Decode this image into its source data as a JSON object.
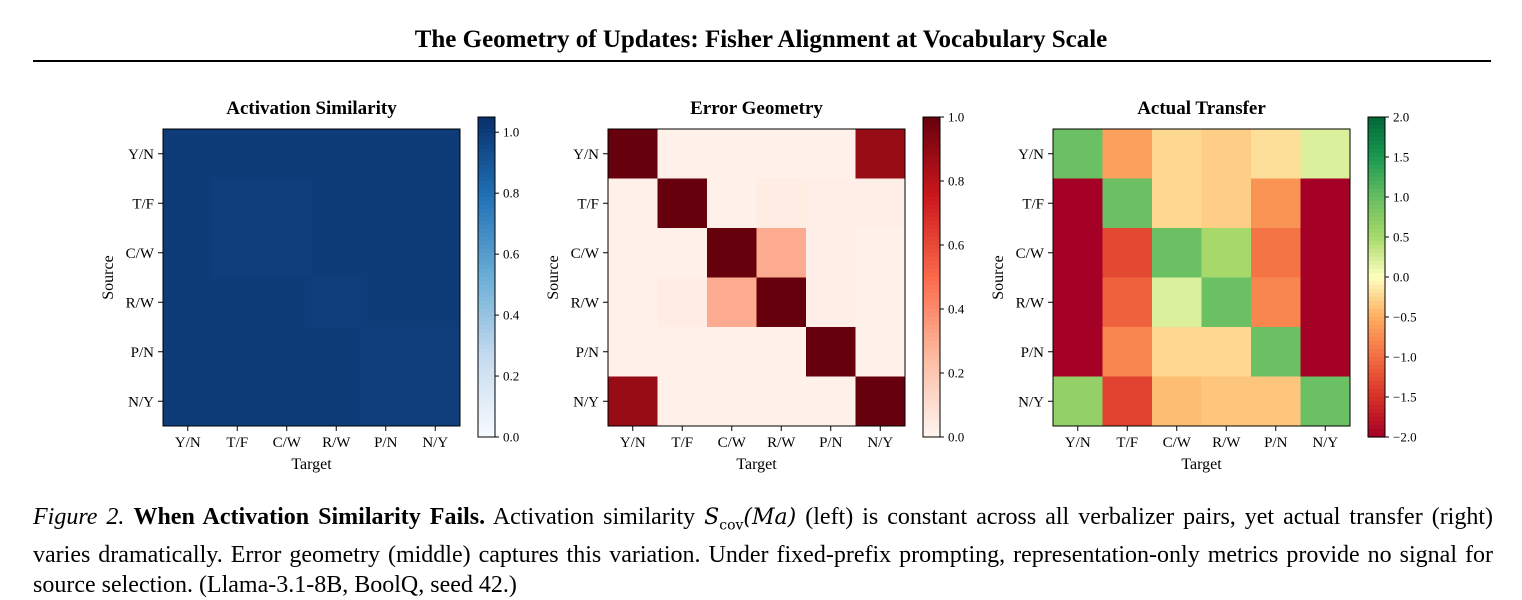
{
  "paper": {
    "running_title": "The Geometry of Updates: Fisher Alignment at Vocabulary Scale"
  },
  "caption": {
    "label": "Figure 2.",
    "heading": "When Activation Similarity Fails.",
    "text_before_math": "Activation similarity",
    "math_symbol": "S",
    "math_subscript": "cov",
    "math_argument": "(Ma)",
    "text_after_math": "(left) is constant across all verbalizer pairs, yet actual transfer (right) varies dramatically. Error geometry (middle) captures this variation. Under fixed-prefix prompting, representation-only metrics provide no signal for source selection. (Llama-3.1-8B, BoolQ, seed 42.)"
  },
  "chart_data": [
    {
      "type": "heatmap",
      "title": "Activation Similarity",
      "xlabel": "Target",
      "ylabel": "Source",
      "x_categories": [
        "Y/N",
        "T/F",
        "C/W",
        "R/W",
        "P/N",
        "N/Y"
      ],
      "y_categories": [
        "Y/N",
        "T/F",
        "C/W",
        "R/W",
        "P/N",
        "N/Y"
      ],
      "colormap": "Blues",
      "vmin": 0.0,
      "vmax": 1.05,
      "colorbar_ticks": [
        "0.0",
        "0.2",
        "0.4",
        "0.6",
        "0.8",
        "1.0"
      ],
      "colorbar_tick_values": [
        0.0,
        0.2,
        0.4,
        0.6,
        0.8,
        1.0
      ],
      "values": [
        [
          1.0,
          1.0,
          1.0,
          1.0,
          1.0,
          1.0
        ],
        [
          1.0,
          0.99,
          0.99,
          1.0,
          1.0,
          1.0
        ],
        [
          1.0,
          0.99,
          0.99,
          1.0,
          1.0,
          1.0
        ],
        [
          1.0,
          1.0,
          1.0,
          0.99,
          1.0,
          1.0
        ],
        [
          1.0,
          1.0,
          1.0,
          1.0,
          0.99,
          0.99
        ],
        [
          1.0,
          1.0,
          1.0,
          1.0,
          0.99,
          0.99
        ]
      ]
    },
    {
      "type": "heatmap",
      "title": "Error Geometry",
      "xlabel": "Target",
      "ylabel": "Source",
      "x_categories": [
        "Y/N",
        "T/F",
        "C/W",
        "R/W",
        "P/N",
        "N/Y"
      ],
      "y_categories": [
        "Y/N",
        "T/F",
        "C/W",
        "R/W",
        "P/N",
        "N/Y"
      ],
      "colormap": "Reds",
      "vmin": 0.0,
      "vmax": 1.0,
      "colorbar_ticks": [
        "0.0",
        "0.2",
        "0.4",
        "0.6",
        "0.8",
        "1.0"
      ],
      "colorbar_tick_values": [
        0.0,
        0.2,
        0.4,
        0.6,
        0.8,
        1.0
      ],
      "values": [
        [
          1.0,
          0.02,
          0.02,
          0.02,
          0.02,
          0.88
        ],
        [
          0.02,
          1.0,
          0.02,
          0.04,
          0.03,
          0.03
        ],
        [
          0.02,
          0.02,
          1.0,
          0.3,
          0.03,
          0.02
        ],
        [
          0.02,
          0.04,
          0.3,
          1.0,
          0.03,
          0.02
        ],
        [
          0.02,
          0.02,
          0.02,
          0.02,
          1.0,
          0.02
        ],
        [
          0.88,
          0.02,
          0.02,
          0.02,
          0.02,
          1.0
        ]
      ]
    },
    {
      "type": "heatmap",
      "title": "Actual Transfer",
      "xlabel": "Target",
      "ylabel": "Source",
      "x_categories": [
        "Y/N",
        "T/F",
        "C/W",
        "R/W",
        "P/N",
        "N/Y"
      ],
      "y_categories": [
        "Y/N",
        "T/F",
        "C/W",
        "R/W",
        "P/N",
        "N/Y"
      ],
      "colormap": "RdYlGn",
      "vmin": -2.0,
      "vmax": 2.0,
      "colorbar_ticks": [
        "2.0",
        "1.5",
        "1.0",
        "0.5",
        "0.0",
        "−0.5",
        "−1.0",
        "−1.5",
        "−2.0"
      ],
      "colorbar_tick_values": [
        2.0,
        1.5,
        1.0,
        0.5,
        0.0,
        -0.5,
        -1.0,
        -1.5,
        -2.0
      ],
      "values": [
        [
          0.95,
          -0.6,
          -0.25,
          -0.3,
          -0.2,
          0.2
        ],
        [
          -2.0,
          0.95,
          -0.25,
          -0.3,
          -0.7,
          -2.0
        ],
        [
          -2.0,
          -1.3,
          0.95,
          0.5,
          -0.95,
          -2.0
        ],
        [
          -2.0,
          -1.1,
          0.2,
          0.95,
          -0.8,
          -2.0
        ],
        [
          -2.0,
          -0.8,
          -0.25,
          -0.25,
          0.95,
          -2.0
        ],
        [
          0.65,
          -1.35,
          -0.4,
          -0.35,
          -0.35,
          0.95
        ]
      ]
    }
  ]
}
